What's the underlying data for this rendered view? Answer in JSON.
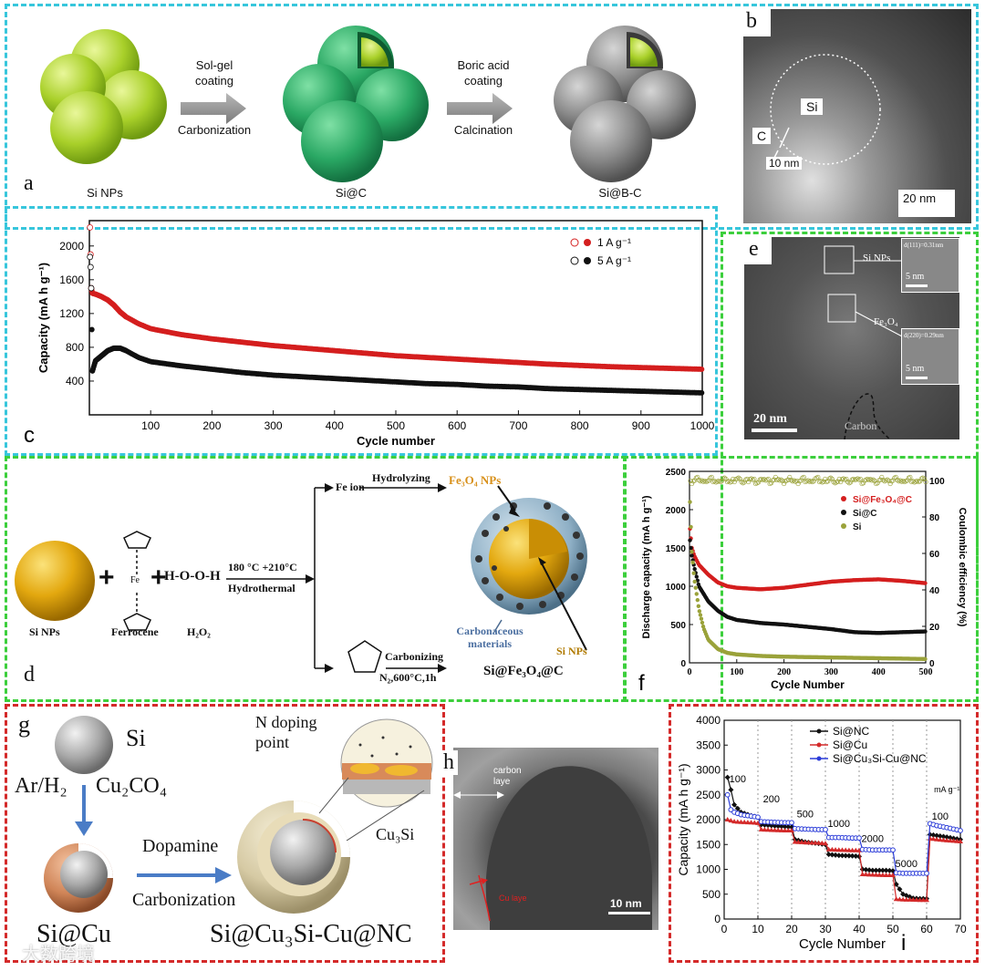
{
  "colors": {
    "cyan": "#37c6dc",
    "green": "#3ccf3c",
    "red": "#d42a2a",
    "series_red": "#d41e1e",
    "series_black": "#111111",
    "olive": "#9aa23a",
    "blue": "#2a3bd8"
  },
  "panel_a": {
    "label": "a",
    "arrow1_top": "Sol-gel coating",
    "arrow1_bottom": "Carbonization",
    "arrow2_top": "Boric acid coating",
    "arrow2_bottom": "Calcination",
    "caption1": "Si NPs",
    "caption2": "Si@C",
    "caption3": "Si@B-C"
  },
  "panel_b": {
    "label": "b",
    "si": "Si",
    "c": "C",
    "thickness": "10 nm",
    "scale": "20 nm"
  },
  "panel_e": {
    "label": "e",
    "si_np": "Si NPs",
    "fe3o4": "Fe₃O₄",
    "d1": "d(111)=0.31nm",
    "d2": "d(220)=0.29nm",
    "scale_inset1": "5 nm",
    "scale_inset2": "5 nm",
    "scale": "20 nm",
    "carbon": "Carbon"
  },
  "panel_d": {
    "label": "d",
    "si_nps": "Si NPs",
    "ferrocene": "Ferrocene",
    "h2o2_label": "H₂O₂",
    "h2o2_formula": "H-O-O-H",
    "plus": "+",
    "fe": "Fe",
    "cond1": "180 °C +210°C",
    "cond2": "Hydrothermal",
    "fe_ion": "Fe ion",
    "hydrolyzing": "Hydrolyzing",
    "fe3o4_nps": "Fe₃O₄ NPs",
    "carbonizing": "Carbonizing",
    "carb_cond": "N₂,600°C,1h",
    "carb_mat": "Carbonaceous materials",
    "si_nps2": "Si NPs",
    "product": "Si@Fe₃O₄@C"
  },
  "panel_g": {
    "label": "g",
    "si": "Si",
    "ar": "Ar/H₂",
    "cu": "Cu₂CO₄",
    "dopamine": "Dopamine",
    "carbonization": "Carbonization",
    "si_cu": "Si@Cu",
    "product": "Si@Cu₃Si-Cu@NC",
    "n_doping": "N doping point",
    "cu3si": "Cu₃Si"
  },
  "panel_h": {
    "label": "h",
    "carbon_layer": "carbon laye",
    "cu_layer": "Cu laye",
    "scale": "10 nm"
  },
  "watermark": "大数跨境",
  "chart_data": [
    {
      "id": "c",
      "type": "scatter",
      "panel_label": "c",
      "xlabel": "Cycle number",
      "ylabel": "Capacity   (mA h g⁻¹)",
      "xlim": [
        0,
        1000
      ],
      "ylim": [
        0,
        2300
      ],
      "xticks": [
        100,
        200,
        300,
        400,
        500,
        600,
        700,
        800,
        900,
        1000
      ],
      "yticks": [
        400,
        800,
        1200,
        1600,
        2000
      ],
      "series": [
        {
          "name": "1 A g⁻¹",
          "color": "#d41e1e",
          "x": [
            1,
            2,
            3,
            5,
            10,
            20,
            30,
            40,
            50,
            60,
            80,
            100,
            150,
            200,
            250,
            300,
            350,
            400,
            450,
            500,
            550,
            600,
            650,
            700,
            750,
            800,
            850,
            900,
            950,
            1000
          ],
          "y": [
            2220,
            1900,
            1500,
            1440,
            1430,
            1400,
            1360,
            1300,
            1220,
            1160,
            1080,
            1020,
            950,
            900,
            860,
            820,
            790,
            760,
            730,
            700,
            680,
            660,
            640,
            620,
            600,
            585,
            570,
            560,
            550,
            540
          ]
        },
        {
          "name": "5 A g⁻¹",
          "color": "#111111",
          "x": [
            1,
            2,
            3,
            5,
            10,
            20,
            30,
            40,
            50,
            60,
            70,
            80,
            100,
            150,
            200,
            250,
            300,
            350,
            400,
            450,
            500,
            550,
            600,
            650,
            700,
            750,
            800,
            850,
            900,
            950,
            1000
          ],
          "y": [
            1870,
            1750,
            1500,
            520,
            640,
            700,
            760,
            790,
            790,
            760,
            720,
            680,
            630,
            580,
            540,
            500,
            470,
            450,
            430,
            410,
            390,
            370,
            360,
            340,
            330,
            310,
            300,
            290,
            280,
            270,
            260
          ]
        }
      ]
    },
    {
      "id": "f",
      "type": "scatter",
      "panel_label": "f",
      "xlabel": "Cycle Number",
      "ylabel": "Discharge capacity (mA h g⁻¹)",
      "y2label": "Coulombic efficiency (%)",
      "xlim": [
        0,
        500
      ],
      "ylim": [
        0,
        2500
      ],
      "y2lim": [
        0,
        105
      ],
      "xticks": [
        0,
        100,
        200,
        300,
        400,
        500
      ],
      "yticks": [
        0,
        500,
        1000,
        1500,
        2000,
        2500
      ],
      "y2ticks": [
        0,
        20,
        40,
        60,
        80,
        100
      ],
      "series": [
        {
          "name": "Si@Fe₃O₄@C",
          "color": "#d41e1e",
          "x": [
            1,
            5,
            10,
            20,
            40,
            60,
            80,
            100,
            150,
            200,
            250,
            300,
            350,
            400,
            450,
            500
          ],
          "y": [
            1750,
            1500,
            1400,
            1280,
            1150,
            1050,
            1000,
            980,
            960,
            980,
            1020,
            1060,
            1080,
            1090,
            1070,
            1040
          ]
        },
        {
          "name": "Si@C",
          "color": "#111111",
          "x": [
            1,
            5,
            10,
            20,
            40,
            60,
            80,
            100,
            150,
            200,
            250,
            300,
            350,
            400,
            450,
            500
          ],
          "y": [
            1600,
            1400,
            1250,
            1000,
            800,
            680,
            600,
            560,
            520,
            500,
            470,
            440,
            400,
            390,
            400,
            410
          ]
        },
        {
          "name": "Si",
          "color": "#9aa23a",
          "x": [
            1,
            5,
            10,
            20,
            30,
            40,
            60,
            80,
            100,
            150,
            200,
            250,
            300,
            350,
            400,
            450,
            500
          ],
          "y": [
            2100,
            1450,
            1100,
            700,
            450,
            300,
            180,
            130,
            110,
            90,
            80,
            75,
            70,
            65,
            60,
            55,
            50
          ]
        }
      ],
      "ce_series": {
        "name": "Coulombic efficiency",
        "values_pct": [
          99,
          100,
          101,
          100,
          99,
          100,
          101,
          100
        ]
      }
    },
    {
      "id": "i",
      "type": "line",
      "panel_label": "i",
      "xlabel": "Cycle Number",
      "ylabel": "Capacity (mA h g⁻¹)",
      "xlim": [
        0,
        70
      ],
      "ylim": [
        0,
        4000
      ],
      "xticks": [
        0,
        10,
        20,
        30,
        40,
        50,
        60,
        70
      ],
      "yticks": [
        0,
        500,
        1000,
        1500,
        2000,
        2500,
        3000,
        3500,
        4000
      ],
      "rate_labels": [
        "100",
        "200",
        "500",
        "1000",
        "2000",
        "5000",
        "100"
      ],
      "unit_label": "mA g⁻¹",
      "series": [
        {
          "name": "Si@NC",
          "color": "#111111",
          "x": [
            1,
            2,
            3,
            5,
            8,
            10,
            11,
            14,
            18,
            20,
            21,
            24,
            28,
            30,
            31,
            34,
            38,
            40,
            41,
            44,
            48,
            50,
            51,
            53,
            56,
            58,
            60,
            61,
            63,
            66,
            70
          ],
          "y": [
            2850,
            2600,
            2300,
            2150,
            2080,
            2050,
            1900,
            1880,
            1860,
            1850,
            1600,
            1550,
            1520,
            1500,
            1300,
            1280,
            1270,
            1260,
            1000,
            980,
            980,
            970,
            700,
            500,
            420,
            410,
            410,
            1700,
            1680,
            1650,
            1600
          ]
        },
        {
          "name": "Si@Cu",
          "color": "#d42a2a",
          "x": [
            1,
            2,
            3,
            5,
            8,
            10,
            11,
            14,
            18,
            20,
            21,
            24,
            28,
            30,
            31,
            34,
            38,
            40,
            41,
            44,
            48,
            50,
            51,
            53,
            56,
            58,
            60,
            61,
            63,
            66,
            70
          ],
          "y": [
            2000,
            1980,
            1960,
            1950,
            1940,
            1930,
            1800,
            1790,
            1780,
            1780,
            1550,
            1540,
            1530,
            1520,
            1400,
            1390,
            1380,
            1380,
            900,
            890,
            880,
            880,
            400,
            390,
            385,
            380,
            380,
            1620,
            1600,
            1580,
            1560
          ]
        },
        {
          "name": "Si@Cu₃Si-Cu@NC",
          "color": "#2a3bd8",
          "x": [
            1,
            2,
            3,
            5,
            8,
            10,
            11,
            14,
            18,
            20,
            21,
            24,
            28,
            30,
            31,
            34,
            38,
            40,
            41,
            44,
            48,
            50,
            51,
            53,
            56,
            58,
            60,
            61,
            63,
            66,
            70
          ],
          "y": [
            2500,
            2200,
            2150,
            2100,
            2070,
            2050,
            1960,
            1950,
            1940,
            1940,
            1820,
            1810,
            1800,
            1800,
            1640,
            1640,
            1630,
            1630,
            1400,
            1390,
            1390,
            1390,
            930,
            920,
            920,
            920,
            920,
            1920,
            1880,
            1840,
            1780
          ]
        }
      ]
    }
  ]
}
